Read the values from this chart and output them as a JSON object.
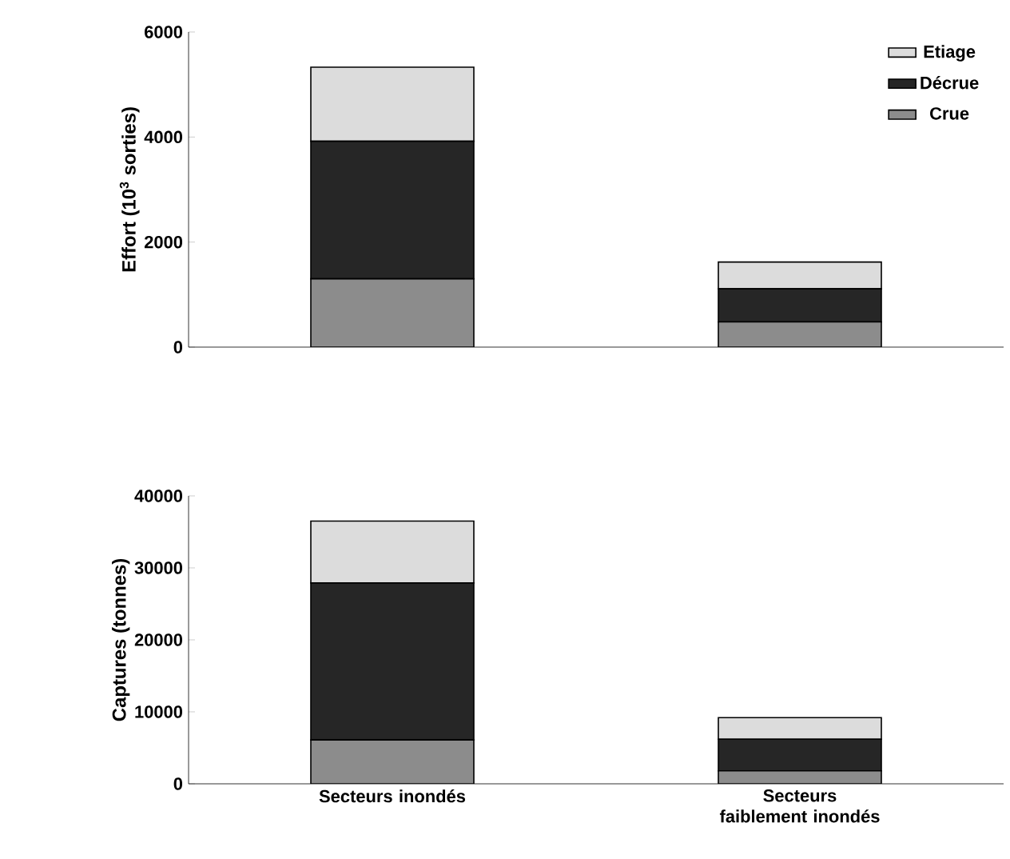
{
  "chart_data": [
    {
      "type": "bar",
      "categories": [
        null,
        null
      ],
      "stacked": true,
      "ylabel": "Effort (10$^{3}$ sorties)",
      "ylim": [
        0,
        6000
      ],
      "yticks": [
        0,
        2000,
        4000,
        6000
      ],
      "legend": "top right",
      "series": [
        {
          "name": "Crue",
          "color": "#8c8c8c",
          "values": [
            1300,
            480
          ]
        },
        {
          "name": "Décrue",
          "color": "#262626",
          "values": [
            2620,
            630
          ]
        },
        {
          "name": "Etiage",
          "color": "#dcdcdc",
          "values": [
            1410,
            510
          ]
        }
      ]
    },
    {
      "type": "bar",
      "categories": [
        "Secteurs inondés",
        "Secteurs faiblement inondés"
      ],
      "stacked": true,
      "ylabel": "Captures (tonnes)",
      "ylim": [
        0,
        40000
      ],
      "yticks": [
        0,
        10000,
        20000,
        30000,
        40000
      ],
      "series": [
        {
          "color": "#8c8c8c",
          "values": [
            6100,
            1800
          ]
        },
        {
          "color": "#262626",
          "values": [
            21800,
            4400
          ]
        },
        {
          "color": "#dcdcdc",
          "values": [
            8600,
            3000
          ]
        }
      ]
    }
  ]
}
